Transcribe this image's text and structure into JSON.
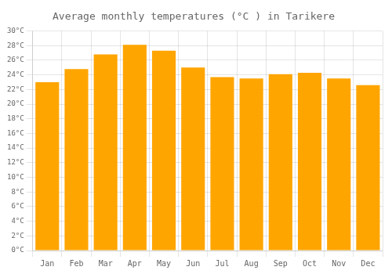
{
  "chart_data": {
    "type": "bar",
    "title": "Average monthly temperatures (°C ) in Tarikere",
    "categories": [
      "Jan",
      "Feb",
      "Mar",
      "Apr",
      "May",
      "Jun",
      "Jul",
      "Aug",
      "Sep",
      "Oct",
      "Nov",
      "Dec"
    ],
    "values": [
      23.0,
      24.8,
      26.8,
      28.1,
      27.3,
      25.0,
      23.7,
      23.5,
      24.1,
      24.3,
      23.5,
      22.6
    ],
    "color": "#FFA500",
    "ylim": [
      0,
      30
    ],
    "yticks": [
      {
        "value": 0,
        "label": "0°C"
      },
      {
        "value": 2,
        "label": "2°C"
      },
      {
        "value": 4,
        "label": "4°C"
      },
      {
        "value": 6,
        "label": "6°C"
      },
      {
        "value": 8,
        "label": "8°C"
      },
      {
        "value": 10,
        "label": "10°C"
      },
      {
        "value": 12,
        "label": "12°C"
      },
      {
        "value": 14,
        "label": "14°C"
      },
      {
        "value": 16,
        "label": "16°C"
      },
      {
        "value": 18,
        "label": "18°C"
      },
      {
        "value": 20,
        "label": "20°C"
      },
      {
        "value": 22,
        "label": "22°C"
      },
      {
        "value": 24,
        "label": "24°C"
      },
      {
        "value": 26,
        "label": "26°C"
      },
      {
        "value": 28,
        "label": "28°C"
      },
      {
        "value": 30,
        "label": "30°C"
      }
    ],
    "grid": true
  }
}
